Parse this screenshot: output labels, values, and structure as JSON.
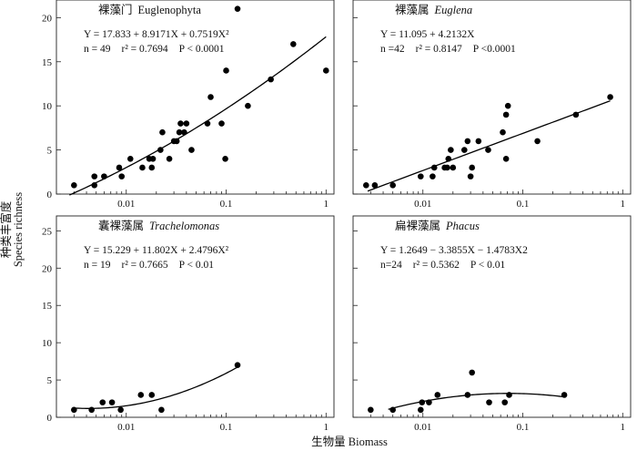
{
  "figure": {
    "ylabel_zh": "种类丰富度",
    "ylabel_en": "Species richness",
    "xlabel": "生物量 Biomass"
  },
  "chart_data": [
    {
      "type": "scatter",
      "title": "裸藻门 Euglenophyta",
      "title_zh": "裸藻门",
      "title_en": "Euglenophyta",
      "title_en_italic": false,
      "equation": "Y = 17.833 + 8.9171X + 0.7519X²",
      "stats": {
        "n": "n = 49",
        "r2": "r² = 0.7694",
        "p": "P < 0.0001"
      },
      "xscale": "log",
      "xlim": [
        0.002,
        1.2
      ],
      "ylim": [
        0,
        22
      ],
      "xticks": [
        0.01,
        0.1,
        1
      ],
      "xticklabels": [
        "0.01",
        "0.1",
        "1"
      ],
      "yticks": [
        0,
        5,
        10,
        15,
        20
      ],
      "yticklabels": [
        "0",
        "5",
        "10",
        "15",
        "20"
      ],
      "fit": {
        "kind": "quadratic_log10",
        "coef": [
          17.833,
          8.9171,
          0.7519
        ],
        "x_range": [
          0.0027,
          1
        ]
      },
      "points": [
        {
          "x": 0.003,
          "y": 1
        },
        {
          "x": 0.0048,
          "y": 1
        },
        {
          "x": 0.0048,
          "y": 2
        },
        {
          "x": 0.006,
          "y": 2
        },
        {
          "x": 0.0085,
          "y": 3
        },
        {
          "x": 0.009,
          "y": 2
        },
        {
          "x": 0.011,
          "y": 4
        },
        {
          "x": 0.0145,
          "y": 3
        },
        {
          "x": 0.017,
          "y": 4
        },
        {
          "x": 0.018,
          "y": 3
        },
        {
          "x": 0.0185,
          "y": 4
        },
        {
          "x": 0.022,
          "y": 5
        },
        {
          "x": 0.023,
          "y": 7
        },
        {
          "x": 0.027,
          "y": 4
        },
        {
          "x": 0.03,
          "y": 6
        },
        {
          "x": 0.032,
          "y": 6
        },
        {
          "x": 0.034,
          "y": 7
        },
        {
          "x": 0.035,
          "y": 8
        },
        {
          "x": 0.038,
          "y": 7
        },
        {
          "x": 0.04,
          "y": 8
        },
        {
          "x": 0.045,
          "y": 5
        },
        {
          "x": 0.065,
          "y": 8
        },
        {
          "x": 0.07,
          "y": 11
        },
        {
          "x": 0.09,
          "y": 8
        },
        {
          "x": 0.098,
          "y": 4
        },
        {
          "x": 0.1,
          "y": 14
        },
        {
          "x": 0.13,
          "y": 21
        },
        {
          "x": 0.165,
          "y": 10
        },
        {
          "x": 0.28,
          "y": 13
        },
        {
          "x": 0.47,
          "y": 17
        },
        {
          "x": 1.0,
          "y": 14
        }
      ]
    },
    {
      "type": "scatter",
      "title": "裸藻属 Euglena",
      "title_zh": "裸藻属",
      "title_en": "Euglena",
      "title_en_italic": true,
      "equation": "Y = 11.095 + 4.2132X",
      "stats": {
        "n": "n =42",
        "r2": "r² = 0.8147",
        "p": "P <0.0001"
      },
      "xscale": "log",
      "xlim": [
        0.002,
        1.2
      ],
      "ylim": [
        0,
        22
      ],
      "xticks": [
        0.01,
        0.1,
        1
      ],
      "xticklabels": [
        "0.01",
        "0.1",
        "1"
      ],
      "yticks": [
        0,
        5,
        10,
        15,
        20
      ],
      "yticklabels": [],
      "fit": {
        "kind": "linear_log10",
        "coef": [
          11.095,
          4.2132
        ],
        "x_range": [
          0.0028,
          0.75
        ]
      },
      "points": [
        {
          "x": 0.0027,
          "y": 1
        },
        {
          "x": 0.0033,
          "y": 1
        },
        {
          "x": 0.005,
          "y": 1
        },
        {
          "x": 0.0095,
          "y": 2
        },
        {
          "x": 0.0125,
          "y": 2
        },
        {
          "x": 0.013,
          "y": 3
        },
        {
          "x": 0.0165,
          "y": 3
        },
        {
          "x": 0.0175,
          "y": 3
        },
        {
          "x": 0.018,
          "y": 4
        },
        {
          "x": 0.019,
          "y": 5
        },
        {
          "x": 0.02,
          "y": 3
        },
        {
          "x": 0.026,
          "y": 5
        },
        {
          "x": 0.028,
          "y": 6
        },
        {
          "x": 0.03,
          "y": 2
        },
        {
          "x": 0.031,
          "y": 3
        },
        {
          "x": 0.036,
          "y": 6
        },
        {
          "x": 0.045,
          "y": 5
        },
        {
          "x": 0.063,
          "y": 7
        },
        {
          "x": 0.068,
          "y": 4
        },
        {
          "x": 0.068,
          "y": 9
        },
        {
          "x": 0.071,
          "y": 10
        },
        {
          "x": 0.14,
          "y": 6
        },
        {
          "x": 0.34,
          "y": 9
        },
        {
          "x": 0.75,
          "y": 11
        }
      ]
    },
    {
      "type": "scatter",
      "title": "囊裸藻属 Trachelomonas",
      "title_zh": "囊裸藻属",
      "title_en": "Trachelomonas",
      "title_en_italic": true,
      "equation": "Y = 15.229 + 11.802X + 2.4796X²",
      "stats": {
        "n": "n = 19",
        "r2": "r² = 0.7665",
        "p": "P < 0.01"
      },
      "xscale": "log",
      "xlim": [
        0.002,
        1.2
      ],
      "ylim": [
        0,
        27
      ],
      "xticks": [
        0.01,
        0.1,
        1
      ],
      "xticklabels": [
        "0.01",
        "0.1",
        "1"
      ],
      "yticks": [
        0,
        5,
        10,
        15,
        20,
        25
      ],
      "yticklabels": [
        "0",
        "5",
        "10",
        "15",
        "20",
        "25"
      ],
      "fit": {
        "kind": "quadratic_log10",
        "coef": [
          15.229,
          11.802,
          2.4796
        ],
        "x_range": [
          0.003,
          0.13
        ]
      },
      "points": [
        {
          "x": 0.003,
          "y": 1
        },
        {
          "x": 0.0045,
          "y": 1
        },
        {
          "x": 0.0058,
          "y": 2
        },
        {
          "x": 0.0072,
          "y": 2
        },
        {
          "x": 0.0088,
          "y": 1
        },
        {
          "x": 0.014,
          "y": 3
        },
        {
          "x": 0.018,
          "y": 3
        },
        {
          "x": 0.0225,
          "y": 1
        },
        {
          "x": 0.13,
          "y": 7
        }
      ]
    },
    {
      "type": "scatter",
      "title": "扁裸藻属 Phacus",
      "title_zh": "扁裸藻属",
      "title_en": "Phacus",
      "title_en_italic": true,
      "equation": "Y = 1.2649 − 3.3855X − 1.4783X2",
      "stats": {
        "n": "n=24",
        "r2": "r² = 0.5362",
        "p": "P < 0.01"
      },
      "xscale": "log",
      "xlim": [
        0.002,
        1.2
      ],
      "ylim": [
        0,
        27
      ],
      "xticks": [
        0.01,
        0.1,
        1
      ],
      "xticklabels": [
        "0.01",
        "0.1",
        "1"
      ],
      "yticks": [
        0,
        5,
        10,
        15,
        20,
        25
      ],
      "yticklabels": [],
      "fit": {
        "kind": "quadratic_log10",
        "coef": [
          1.2649,
          -3.3855,
          -1.4783
        ],
        "x_range": [
          0.0045,
          0.27
        ]
      },
      "points": [
        {
          "x": 0.003,
          "y": 1
        },
        {
          "x": 0.005,
          "y": 1
        },
        {
          "x": 0.0095,
          "y": 1
        },
        {
          "x": 0.0098,
          "y": 2
        },
        {
          "x": 0.0115,
          "y": 2
        },
        {
          "x": 0.014,
          "y": 3
        },
        {
          "x": 0.028,
          "y": 3
        },
        {
          "x": 0.031,
          "y": 6
        },
        {
          "x": 0.046,
          "y": 2
        },
        {
          "x": 0.066,
          "y": 2
        },
        {
          "x": 0.073,
          "y": 3
        },
        {
          "x": 0.26,
          "y": 3
        }
      ]
    }
  ]
}
